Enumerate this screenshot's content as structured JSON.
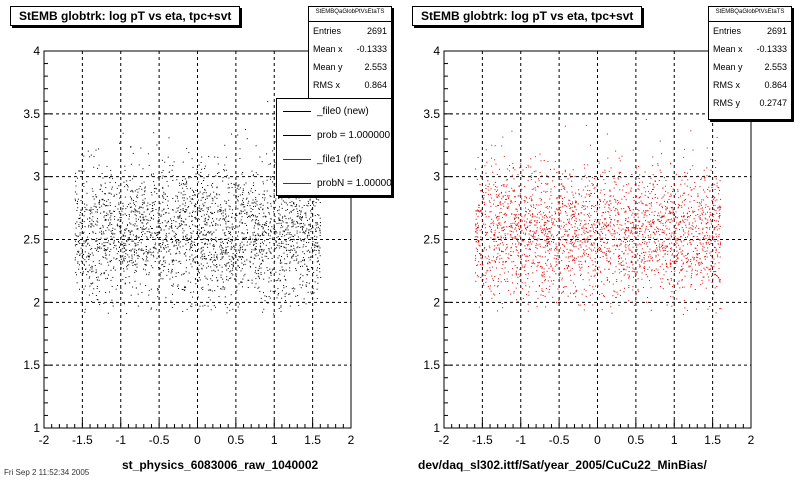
{
  "footer_text": "Fri Sep 2 11:52:34 2005",
  "chart_data": [
    {
      "type": "scatter",
      "title": "StEMB globtrk: log pT vs eta, tpc+svt",
      "xlabel": "st_physics_6083006_raw_1040002",
      "ylabel": "",
      "xlim": [
        -2,
        2
      ],
      "ylim": [
        1,
        4
      ],
      "xticks": [
        "-2",
        "-1.5",
        "-1",
        "-0.5",
        "0",
        "0.5",
        "1",
        "1.5",
        "2"
      ],
      "yticks": [
        "1",
        "1.5",
        "2",
        "2.5",
        "3",
        "3.5",
        "4"
      ],
      "grid": true,
      "color": "#000000",
      "stats": {
        "header": "StEMBQaGlobPtVsEtaTS",
        "rows": [
          {
            "label": "Entries",
            "value": "2691"
          },
          {
            "label": "Mean x",
            "value": "-0.1333"
          },
          {
            "label": "Mean y",
            "value": "2.553"
          },
          {
            "label": "RMS x",
            "value": "0.864"
          },
          {
            "label": "RMS y",
            "value": "0.2747"
          }
        ]
      },
      "legend": {
        "placement": "top-right",
        "items": [
          {
            "label": "_file0 (new)",
            "color": "#000000"
          },
          {
            "label": "prob = 1.000000",
            "color": "#000000"
          },
          {
            "label": "_file1 (ref)",
            "color": "#cc0000"
          },
          {
            "label": "probN = 1.000000",
            "color": "#cc0000"
          }
        ]
      },
      "distribution": {
        "entries": 2691,
        "mean_x": -0.1333,
        "mean_y": 2.553,
        "rms_x": 0.864,
        "rms_y": 0.2747
      }
    },
    {
      "type": "scatter",
      "title": "StEMB globtrk: log pT vs eta, tpc+svt",
      "xlabel": "dev/daq_sl302.ittf/Sat/year_2005/CuCu22_MinBias/",
      "ylabel": "",
      "xlim": [
        -2,
        2
      ],
      "ylim": [
        1,
        4
      ],
      "xticks": [
        "-2",
        "-1.5",
        "-1",
        "-0.5",
        "0",
        "0.5",
        "1",
        "1.5",
        "2"
      ],
      "yticks": [
        "1",
        "1.5",
        "2",
        "2.5",
        "3",
        "3.5",
        "4"
      ],
      "grid": true,
      "color": "#dd0000",
      "stats": {
        "header": "StEMBQaGlobPtVsEtaTS",
        "rows": [
          {
            "label": "Entries",
            "value": "2691"
          },
          {
            "label": "Mean x",
            "value": "-0.1333"
          },
          {
            "label": "Mean y",
            "value": "2.553"
          },
          {
            "label": "RMS x",
            "value": "0.864"
          },
          {
            "label": "RMS y",
            "value": "0.2747"
          }
        ]
      },
      "distribution": {
        "entries": 2691,
        "mean_x": -0.1333,
        "mean_y": 2.553,
        "rms_x": 0.864,
        "rms_y": 0.2747
      }
    }
  ]
}
